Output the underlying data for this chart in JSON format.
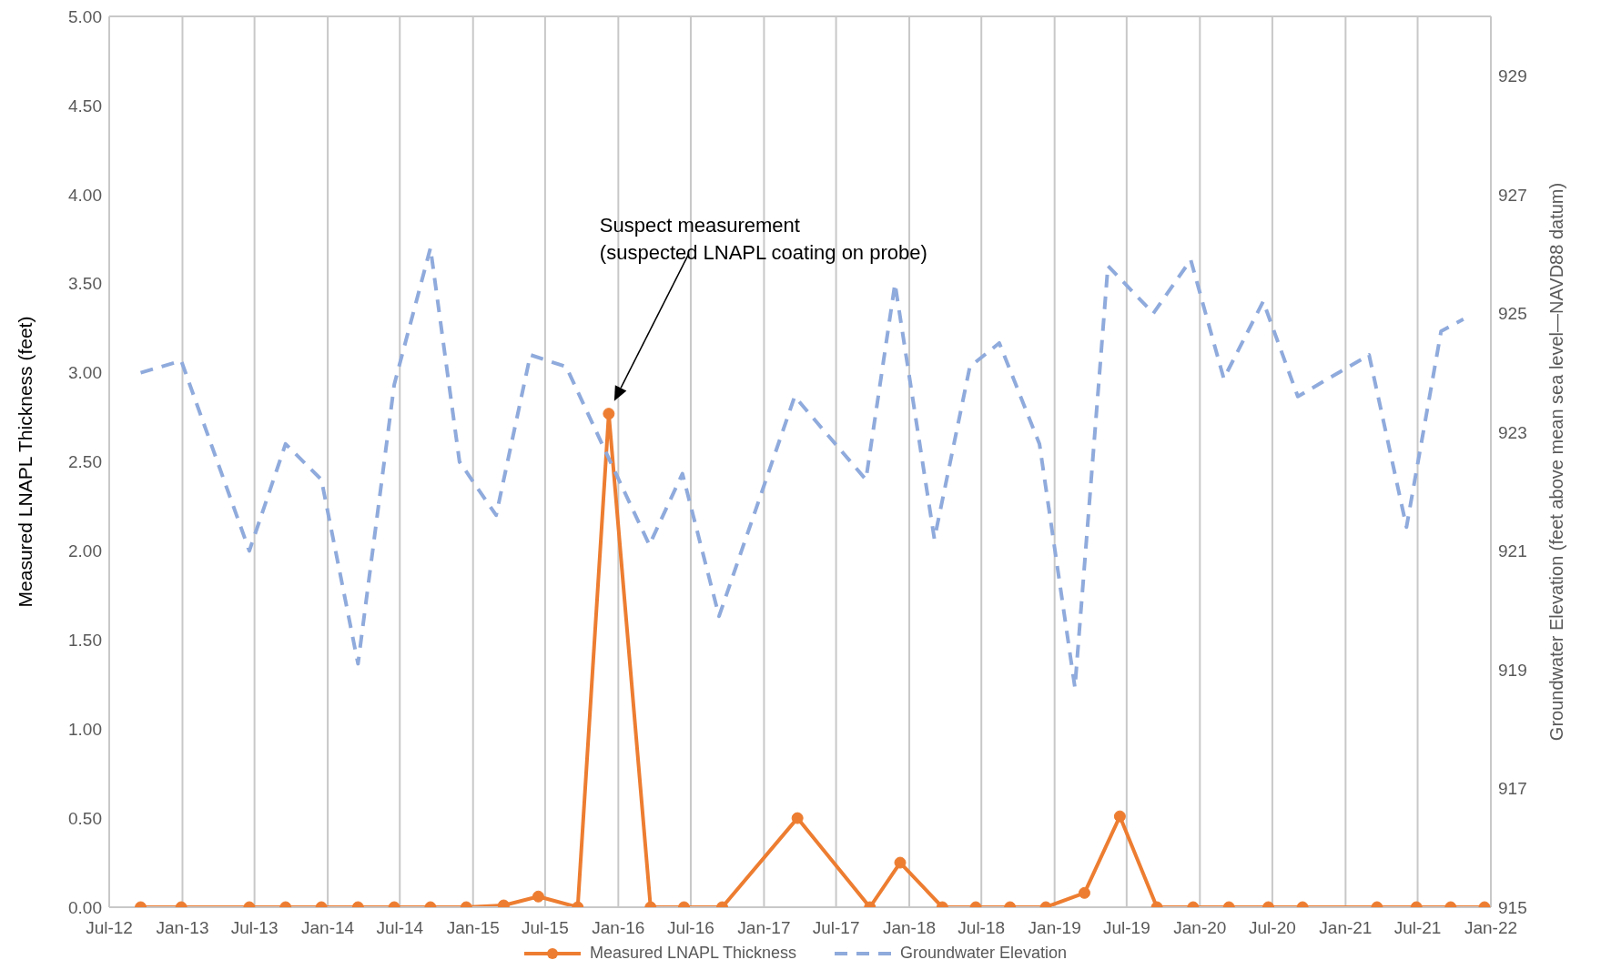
{
  "chart_data": {
    "type": "line",
    "xlabel": null,
    "ylabel": "Measured LNAPL Thickness (feet)",
    "y2label": "Groundwater Elevation (feet above mean sea level—NAVD88 datum)",
    "xlim": [
      "2012-07",
      "2022-01"
    ],
    "xticks": [
      {
        "value": "2012-07",
        "label": "Jul-12"
      },
      {
        "value": "2013-01",
        "label": "Jan-13"
      },
      {
        "value": "2013-07",
        "label": "Jul-13"
      },
      {
        "value": "2014-01",
        "label": "Jan-14"
      },
      {
        "value": "2014-07",
        "label": "Jul-14"
      },
      {
        "value": "2015-01",
        "label": "Jan-15"
      },
      {
        "value": "2015-07",
        "label": "Jul-15"
      },
      {
        "value": "2016-01",
        "label": "Jan-16"
      },
      {
        "value": "2016-07",
        "label": "Jul-16"
      },
      {
        "value": "2017-01",
        "label": "Jan-17"
      },
      {
        "value": "2017-07",
        "label": "Jul-17"
      },
      {
        "value": "2018-01",
        "label": "Jan-18"
      },
      {
        "value": "2018-07",
        "label": "Jul-18"
      },
      {
        "value": "2019-01",
        "label": "Jan-19"
      },
      {
        "value": "2019-07",
        "label": "Jul-19"
      },
      {
        "value": "2020-01",
        "label": "Jan-20"
      },
      {
        "value": "2020-07",
        "label": "Jul-20"
      },
      {
        "value": "2021-01",
        "label": "Jan-21"
      },
      {
        "value": "2021-07",
        "label": "Jul-21"
      },
      {
        "value": "2022-01",
        "label": "Jan-22"
      }
    ],
    "ylim": [
      0,
      5
    ],
    "yticks": [
      {
        "value": 0,
        "label": "0.00"
      },
      {
        "value": 0.5,
        "label": "0.50"
      },
      {
        "value": 1,
        "label": "1.00"
      },
      {
        "value": 1.5,
        "label": "1.50"
      },
      {
        "value": 2,
        "label": "2.00"
      },
      {
        "value": 2.5,
        "label": "2.50"
      },
      {
        "value": 3,
        "label": "3.00"
      },
      {
        "value": 3.5,
        "label": "3.50"
      },
      {
        "value": 4,
        "label": "4.00"
      },
      {
        "value": 4.5,
        "label": "4.50"
      },
      {
        "value": 5,
        "label": "5.00"
      }
    ],
    "y2lim": [
      915,
      930
    ],
    "y2ticks": [
      915,
      917,
      919,
      921,
      923,
      925,
      927,
      929
    ],
    "grid": true,
    "legend": "bottom",
    "series": [
      {
        "name": "Measured LNAPL Thickness",
        "color": "#ed7d31",
        "marker": "circle",
        "line_style": "solid",
        "x": [
          "2012-09-18",
          "2012-12-29",
          "2013-06-18",
          "2013-09-17",
          "2013-12-16",
          "2014-03-18",
          "2014-06-17",
          "2014-09-16",
          "2014-12-15",
          "2015-03-19",
          "2015-06-14",
          "2015-09-21",
          "2015-12-08",
          "2016-03-22",
          "2016-06-14",
          "2016-09-18",
          "2017-03-26",
          "2017-09-24",
          "2017-12-09",
          "2018-03-25",
          "2018-06-17",
          "2018-09-11",
          "2018-12-10",
          "2019-03-17",
          "2019-06-14",
          "2019-09-15",
          "2019-12-15",
          "2020-03-14",
          "2020-06-21",
          "2020-09-15",
          "2021-03-21",
          "2021-06-28",
          "2021-09-22",
          "2021-12-16"
        ],
        "values": [
          0,
          0,
          0,
          0,
          0,
          0,
          0,
          0,
          0,
          0.01,
          0.06,
          0,
          2.77,
          0,
          0,
          0,
          0.5,
          0,
          0.25,
          0,
          0,
          0,
          0,
          0.08,
          0.51,
          0,
          0,
          0,
          0,
          0,
          0,
          0,
          0,
          0
        ]
      },
      {
        "name": "Groundwater Elevation",
        "color": "#8faadc",
        "marker": "none",
        "line_style": "dashed",
        "axis": "y2",
        "x": [
          "2012-09-18",
          "2012-12-29",
          "2013-06-18",
          "2013-09-17",
          "2013-12-16",
          "2014-03-18",
          "2014-06-17",
          "2014-09-16",
          "2014-11-28",
          "2015-02-28",
          "2015-05-25",
          "2015-08-23",
          "2015-11-21",
          "2016-03-19",
          "2016-06-10",
          "2016-09-10",
          "2017-03-19",
          "2017-09-14",
          "2017-11-26",
          "2018-03-05",
          "2018-06-02",
          "2018-08-15",
          "2018-11-24",
          "2019-02-21",
          "2019-05-15",
          "2019-09-06",
          "2019-12-09",
          "2020-03-01",
          "2020-06-08",
          "2020-09-03",
          "2021-03-01",
          "2021-06-03",
          "2021-08-29",
          "2021-10-24"
        ],
        "values": [
          924.0,
          924.2,
          921.0,
          922.8,
          922.2,
          919.1,
          923.8,
          926.1,
          922.5,
          921.6,
          924.3,
          924.1,
          922.8,
          921.1,
          922.3,
          919.9,
          923.6,
          922.2,
          925.5,
          921.2,
          924.1,
          924.5,
          922.8,
          918.7,
          925.8,
          925.0,
          925.9,
          923.9,
          925.2,
          923.6,
          924.3,
          921.4,
          924.7,
          924.9
        ]
      }
    ],
    "annotations": [
      "Suspect measurement\n(suspected LNAPL coating on probe)"
    ]
  }
}
